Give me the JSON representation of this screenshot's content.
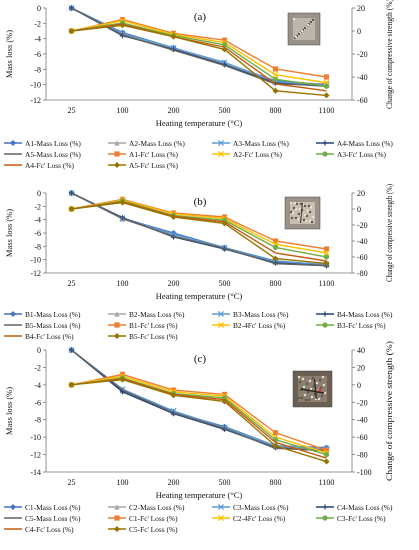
{
  "chart_data": [
    {
      "type": "line",
      "panel_label": "(a)",
      "photo": "specimen-photo",
      "xlabel": "Heating temperature (°C)",
      "ylabel": "Mass loss (%)",
      "y2label": "Change of compressive strength (%)",
      "categories": [
        "25",
        "100",
        "200",
        "500",
        "800",
        "1100"
      ],
      "ylim": [
        -12,
        0
      ],
      "yticks": [
        0,
        -2,
        -4,
        -6,
        -8,
        -10,
        -12
      ],
      "y2lim": [
        -60,
        20
      ],
      "y2ticks": [
        20,
        0,
        -20,
        -40,
        -60
      ],
      "series": [
        {
          "name": "A1-Mass Loss (%)",
          "axis": "left",
          "color": "#4472C4",
          "marker": "diamond",
          "values": [
            0,
            -3.2,
            -5.2,
            -7.2,
            -9.5,
            -10.0
          ]
        },
        {
          "name": "A2-Mass Loss (%)",
          "axis": "left",
          "color": "#A5A5A5",
          "marker": "triangle",
          "values": [
            0,
            -3.4,
            -5.3,
            -7.3,
            -9.7,
            -9.9
          ]
        },
        {
          "name": "A3-Mass Loss (%)",
          "axis": "left",
          "color": "#5B9BD5",
          "marker": "x",
          "values": [
            0,
            -3.3,
            -5.2,
            -7.1,
            -9.6,
            -10.0
          ]
        },
        {
          "name": "A4-Mass Loss (%)",
          "axis": "left",
          "color": "#264478",
          "marker": "plus",
          "values": [
            0,
            -3.6,
            -5.4,
            -7.4,
            -9.8,
            -10.2
          ]
        },
        {
          "name": "A5-Mass Loss (%)",
          "axis": "left",
          "color": "#636363",
          "marker": "none",
          "values": [
            0,
            -3.5,
            -5.5,
            -7.5,
            -9.9,
            -10.1
          ]
        },
        {
          "name": "A1-Fc' Loss (%)",
          "axis": "right",
          "color": "#ED7D31",
          "marker": "square",
          "values": [
            0,
            10,
            -2,
            -8,
            -33,
            -40
          ]
        },
        {
          "name": "A2-Fc' Loss (%)",
          "axis": "right",
          "color": "#FFC000",
          "marker": "x",
          "values": [
            0,
            9,
            -3,
            -10,
            -38,
            -45
          ]
        },
        {
          "name": "A3-Fc' Loss (%)",
          "axis": "right",
          "color": "#70AD47",
          "marker": "circle",
          "values": [
            0,
            7,
            -4,
            -12,
            -42,
            -48
          ]
        },
        {
          "name": "A4-Fc' Loss (%)",
          "axis": "right",
          "color": "#C55A11",
          "marker": "none",
          "values": [
            0,
            6,
            -5,
            -14,
            -46,
            -52
          ]
        },
        {
          "name": "A5-Fc' Loss (%)",
          "axis": "right",
          "color": "#997300",
          "marker": "diamond",
          "values": [
            0,
            5,
            -5,
            -16,
            -52,
            -56
          ]
        }
      ]
    },
    {
      "type": "line",
      "panel_label": "(b)",
      "photo": "specimen-photo",
      "xlabel": "Heating temperature (°C)",
      "ylabel": "Mass loss (%)",
      "y2label": "Change of compressive strength (%)",
      "categories": [
        "25",
        "100",
        "200",
        "500",
        "800",
        "1100"
      ],
      "ylim": [
        -12,
        0
      ],
      "yticks": [
        0,
        -2,
        -4,
        -6,
        -8,
        -10,
        -12
      ],
      "y2lim": [
        -80,
        20
      ],
      "y2ticks": [
        20,
        0,
        -20,
        -40,
        -60,
        -80
      ],
      "series": [
        {
          "name": "B1-Mass Loss (%)",
          "axis": "left",
          "color": "#4472C4",
          "marker": "diamond",
          "values": [
            0,
            -3.8,
            -6.0,
            -8.2,
            -10.2,
            -10.8
          ]
        },
        {
          "name": "B2-Mass Loss (%)",
          "axis": "left",
          "color": "#A5A5A5",
          "marker": "triangle",
          "values": [
            0,
            -3.9,
            -6.4,
            -8.3,
            -10.4,
            -10.8
          ]
        },
        {
          "name": "B3-Mass Loss (%)",
          "axis": "left",
          "color": "#5B9BD5",
          "marker": "x",
          "values": [
            0,
            -3.8,
            -6.2,
            -8.2,
            -10.3,
            -10.7
          ]
        },
        {
          "name": "B4-Mass Loss (%)",
          "axis": "left",
          "color": "#264478",
          "marker": "plus",
          "values": [
            0,
            -3.7,
            -6.6,
            -8.4,
            -10.5,
            -10.9
          ]
        },
        {
          "name": "B5-Mass Loss (%)",
          "axis": "left",
          "color": "#636363",
          "marker": "none",
          "values": [
            0,
            -3.8,
            -6.5,
            -8.3,
            -10.6,
            -10.9
          ]
        },
        {
          "name": "B1-Fc' Loss (%)",
          "axis": "right",
          "color": "#ED7D31",
          "marker": "square",
          "values": [
            0,
            12,
            -5,
            -10,
            -40,
            -50
          ]
        },
        {
          "name": "B2-4Fc' Loss (%)",
          "axis": "right",
          "color": "#FFC000",
          "marker": "x",
          "values": [
            0,
            11,
            -6,
            -12,
            -44,
            -55
          ]
        },
        {
          "name": "B3-Fc' Loss (%)",
          "axis": "right",
          "color": "#70AD47",
          "marker": "circle",
          "values": [
            0,
            10,
            -8,
            -14,
            -48,
            -60
          ]
        },
        {
          "name": "B4-Fc' Loss (%)",
          "axis": "right",
          "color": "#C55A11",
          "marker": "none",
          "values": [
            0,
            9,
            -9,
            -16,
            -55,
            -65
          ]
        },
        {
          "name": "B5-Fc' Loss (%)",
          "axis": "right",
          "color": "#997300",
          "marker": "diamond",
          "values": [
            0,
            8,
            -10,
            -18,
            -62,
            -68
          ]
        }
      ]
    },
    {
      "type": "line",
      "panel_label": "(c)",
      "photo": "specimen-photo",
      "xlabel": "Heating temperature (°C)",
      "ylabel": "Mass loss (%)",
      "y2label": "Change of compressive strength (%)",
      "categories": [
        "25",
        "100",
        "200",
        "500",
        "800",
        "1100"
      ],
      "ylim": [
        -14,
        0
      ],
      "yticks": [
        0,
        -2,
        -4,
        -6,
        -8,
        -10,
        -12,
        -14
      ],
      "y2lim": [
        -100,
        40
      ],
      "y2ticks": [
        40,
        20,
        0,
        -20,
        -40,
        -60,
        -80,
        -100
      ],
      "series": [
        {
          "name": "C1-Mass Loss (%)",
          "axis": "left",
          "color": "#4472C4",
          "marker": "diamond",
          "values": [
            0,
            -4.6,
            -7.1,
            -8.8,
            -11.0,
            -11.2
          ]
        },
        {
          "name": "C2-Mass Loss (%)",
          "axis": "left",
          "color": "#A5A5A5",
          "marker": "triangle",
          "values": [
            0,
            -4.7,
            -7.2,
            -9.0,
            -11.1,
            -11.4
          ]
        },
        {
          "name": "C3-Mass Loss (%)",
          "axis": "left",
          "color": "#5B9BD5",
          "marker": "x",
          "values": [
            0,
            -4.5,
            -7.0,
            -8.9,
            -11.0,
            -11.3
          ]
        },
        {
          "name": "C4-Mass Loss (%)",
          "axis": "left",
          "color": "#264478",
          "marker": "plus",
          "values": [
            0,
            -4.8,
            -7.3,
            -9.1,
            -11.2,
            -11.6
          ]
        },
        {
          "name": "C5-Mass Loss (%)",
          "axis": "left",
          "color": "#636363",
          "marker": "none",
          "values": [
            0,
            -4.6,
            -7.2,
            -9.0,
            -11.3,
            -11.5
          ]
        },
        {
          "name": "C1-Fc' Loss (%)",
          "axis": "right",
          "color": "#ED7D31",
          "marker": "square",
          "values": [
            0,
            12,
            -6,
            -11,
            -55,
            -75
          ]
        },
        {
          "name": "C2-4Fc' Loss (%)",
          "axis": "right",
          "color": "#FFC000",
          "marker": "x",
          "values": [
            0,
            10,
            -8,
            -13,
            -60,
            -78
          ]
        },
        {
          "name": "C3-Fc' Loss (%)",
          "axis": "right",
          "color": "#70AD47",
          "marker": "circle",
          "values": [
            0,
            8,
            -10,
            -15,
            -63,
            -80
          ]
        },
        {
          "name": "C4-Fc' Loss (%)",
          "axis": "right",
          "color": "#C55A11",
          "marker": "none",
          "values": [
            0,
            7,
            -11,
            -17,
            -66,
            -84
          ]
        },
        {
          "name": "C5-Fc' Loss (%)",
          "axis": "right",
          "color": "#997300",
          "marker": "diamond",
          "values": [
            0,
            6,
            -12,
            -19,
            -70,
            -88
          ]
        }
      ]
    }
  ]
}
